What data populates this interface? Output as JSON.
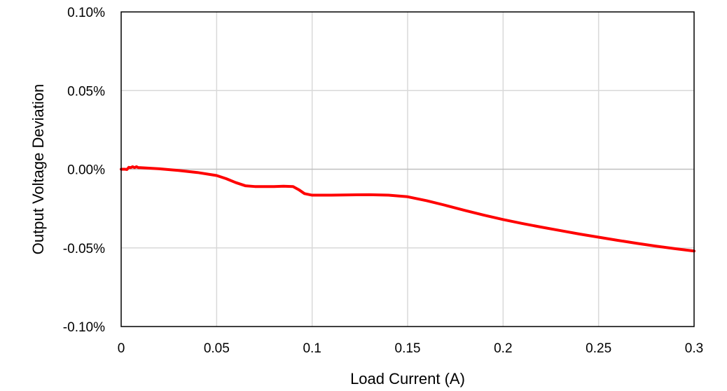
{
  "chart_data": {
    "type": "line",
    "title": "",
    "xlabel": "Load Current (A)",
    "ylabel": "Output Voltage Deviation",
    "xlim": [
      0,
      0.3
    ],
    "ylim": [
      -0.1,
      0.1
    ],
    "x_ticks": [
      0,
      0.05,
      0.1,
      0.15,
      0.2,
      0.25,
      0.3
    ],
    "x_tick_labels": [
      "0",
      "0.05",
      "0.1",
      "0.15",
      "0.2",
      "0.25",
      "0.3"
    ],
    "y_ticks": [
      0.1,
      0.05,
      0.0,
      -0.05,
      -0.1
    ],
    "y_tick_labels": [
      "0.10%",
      "0.05%",
      "0.00%",
      "-0.05%",
      "-0.10%"
    ],
    "y_unit": "%",
    "grid": true,
    "legend": "none",
    "series": [
      {
        "color": "#ff0000",
        "x": [
          0,
          0.002,
          0.003,
          0.004,
          0.005,
          0.006,
          0.007,
          0.008,
          0.009,
          0.01,
          0.02,
          0.03,
          0.04,
          0.05,
          0.055,
          0.06,
          0.065,
          0.07,
          0.075,
          0.08,
          0.085,
          0.09,
          0.093,
          0.096,
          0.1,
          0.11,
          0.12,
          0.13,
          0.14,
          0.15,
          0.16,
          0.17,
          0.18,
          0.19,
          0.2,
          0.21,
          0.22,
          0.23,
          0.24,
          0.25,
          0.26,
          0.27,
          0.28,
          0.29,
          0.3
        ],
        "y": [
          0.0,
          0.0,
          -0.0002,
          0.0012,
          0.001,
          0.0016,
          0.001,
          0.0016,
          0.001,
          0.001,
          0.0003,
          -0.0008,
          -0.0021,
          -0.004,
          -0.006,
          -0.0085,
          -0.0105,
          -0.011,
          -0.011,
          -0.011,
          -0.0108,
          -0.011,
          -0.013,
          -0.0155,
          -0.0165,
          -0.0165,
          -0.0163,
          -0.0162,
          -0.0165,
          -0.0175,
          -0.02,
          -0.023,
          -0.0262,
          -0.0292,
          -0.032,
          -0.0345,
          -0.0368,
          -0.039,
          -0.0412,
          -0.0432,
          -0.0452,
          -0.0471,
          -0.0489,
          -0.0505,
          -0.052
        ]
      }
    ]
  }
}
